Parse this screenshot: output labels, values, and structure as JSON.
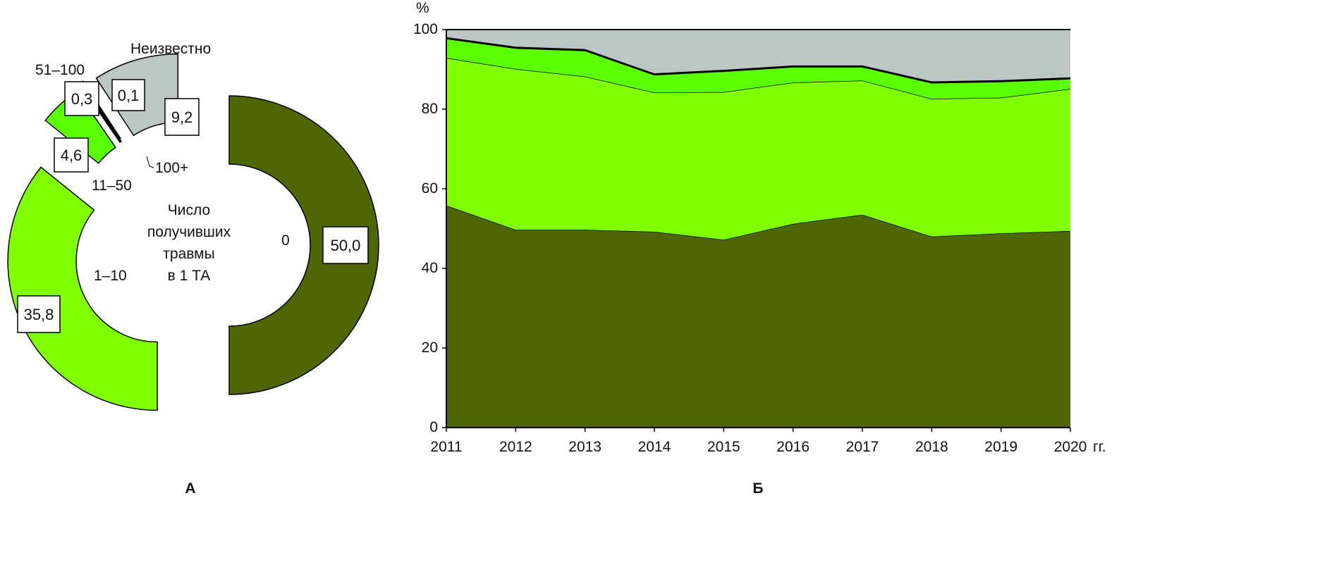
{
  "chart_data": [
    {
      "type": "pie",
      "panel_label": "А",
      "center_text": [
        "Число",
        "получивших",
        "травмы",
        "в 1 ТА"
      ],
      "slices": [
        {
          "label": "0",
          "value": 50.0,
          "value_text": "50,0",
          "color": "#4f6604"
        },
        {
          "label": "1–10",
          "value": 35.8,
          "value_text": "35,8",
          "color": "#80ff00"
        },
        {
          "label": "11–50",
          "value": 4.6,
          "value_text": "4,6",
          "color": "#5cff00"
        },
        {
          "label": "51–100",
          "value": 0.3,
          "value_text": "0,3",
          "color": "#000000"
        },
        {
          "label": "100+",
          "value": 0.1,
          "value_text": "0,1",
          "color": "#1f7f60"
        },
        {
          "label": "Неизвестно",
          "value": 9.2,
          "value_text": "9,2",
          "color": "#bbc7c5"
        }
      ]
    },
    {
      "type": "area",
      "stacked": true,
      "panel_label": "Б",
      "ylabel": "%",
      "xunit": "гг.",
      "ylim": [
        0,
        100
      ],
      "yticks": [
        0,
        20,
        40,
        60,
        80,
        100
      ],
      "x": [
        2011,
        2012,
        2013,
        2014,
        2015,
        2016,
        2017,
        2018,
        2019,
        2020
      ],
      "grid": false,
      "series": [
        {
          "category": "0",
          "color": "#4f6604",
          "values": [
            55.8,
            49.7,
            49.7,
            49.2,
            47.2,
            51.2,
            53.5,
            48.0,
            48.8,
            49.4
          ]
        },
        {
          "category": "1–10",
          "color": "#80ff00",
          "values": [
            37.1,
            40.4,
            38.5,
            35.0,
            37.1,
            35.5,
            33.7,
            34.6,
            34.1,
            35.7
          ]
        },
        {
          "category": "11–50",
          "color": "#5cff00",
          "values": [
            4.8,
            5.2,
            6.5,
            4.4,
            5.2,
            3.9,
            3.4,
            4.0,
            4.0,
            2.5
          ]
        },
        {
          "category": "51–100",
          "color": "#000000",
          "values": [
            0.3,
            0.3,
            0.3,
            0.3,
            0.3,
            0.3,
            0.3,
            0.3,
            0.3,
            0.3
          ]
        },
        {
          "category": "100+",
          "color": "#1f7f60",
          "values": [
            0.1,
            0.1,
            0.1,
            0.1,
            0.1,
            0.1,
            0.1,
            0.1,
            0.1,
            0.1
          ]
        },
        {
          "category": "Неизвестно",
          "color": "#bbc7c5",
          "values": [
            1.9,
            4.3,
            4.9,
            11.0,
            10.1,
            9.0,
            9.0,
            13.0,
            12.7,
            12.0
          ]
        }
      ]
    }
  ]
}
